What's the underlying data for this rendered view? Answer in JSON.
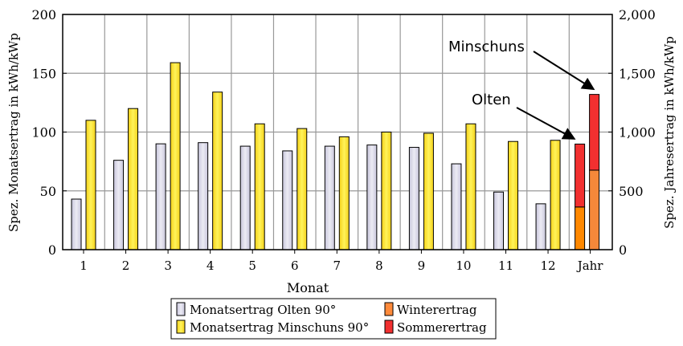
{
  "chart_data": {
    "type": "bar",
    "title": "",
    "xlabel": "Monat",
    "ylabel": "Spez. Monatsertrag in kWh/kWp",
    "y2label": "Spez. Jahresertrag in kWh/kWp",
    "ylim": [
      0,
      200
    ],
    "y2lim": [
      0,
      2000
    ],
    "yticks": [
      "0",
      "50",
      "100",
      "150",
      "200"
    ],
    "y2ticks": [
      "0",
      "500",
      "1,000",
      "1,500",
      "2,000"
    ],
    "grid": true,
    "categories": [
      "1",
      "2",
      "3",
      "4",
      "5",
      "6",
      "7",
      "8",
      "9",
      "10",
      "11",
      "12"
    ],
    "series": [
      {
        "name": "Monatsertrag Olten 90°",
        "color": "#d8d6e6",
        "values": [
          43,
          76,
          90,
          91,
          88,
          84,
          88,
          89,
          87,
          73,
          49,
          39
        ]
      },
      {
        "name": "Monatsertrag Minschuns 90°",
        "color": "#ffe83a",
        "values": [
          110,
          120,
          159,
          134,
          107,
          103,
          96,
          100,
          99,
          107,
          92,
          93
        ]
      }
    ],
    "annual": {
      "category": "Jahr",
      "axis": "right",
      "stacks": [
        {
          "label": "Olten",
          "Winterertrag": 363,
          "Sommerertrag": 535
        },
        {
          "label": "Minschuns",
          "Winterertrag": 676,
          "Sommerertrag": 644
        }
      ],
      "series": [
        {
          "name": "Winterertrag",
          "color": "#ff8a1a"
        },
        {
          "name": "Sommerertrag",
          "color": "#f23030"
        }
      ]
    },
    "legend_placement": "bottom"
  }
}
